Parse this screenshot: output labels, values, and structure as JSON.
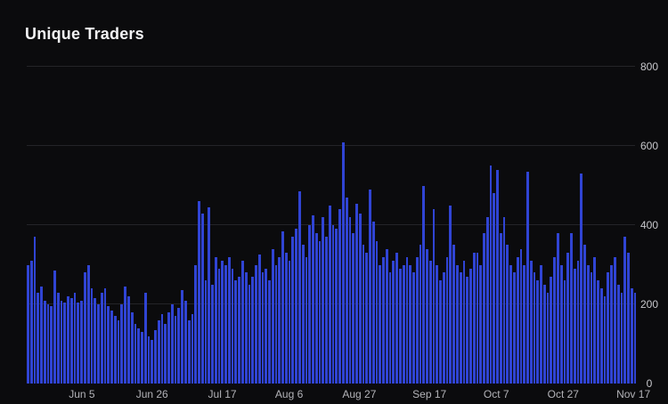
{
  "chart_data": {
    "type": "bar",
    "title": "Unique Traders",
    "xlabel": "",
    "ylabel": "",
    "ylim": [
      0,
      800
    ],
    "y_ticks": [
      0,
      200,
      400,
      600,
      800
    ],
    "y_axis_side": "right",
    "grid": "horizontal",
    "legend": "none",
    "x_tick_labels": [
      "Jun 5",
      "Jun 26",
      "Jul 17",
      "Aug 6",
      "Aug 27",
      "Sep 17",
      "Oct 7",
      "Oct 27",
      "Nov 17"
    ],
    "x_tick_indices": [
      16,
      37,
      58,
      78,
      99,
      120,
      140,
      160,
      181
    ],
    "values": [
      300,
      310,
      370,
      230,
      245,
      210,
      200,
      195,
      285,
      230,
      210,
      205,
      220,
      215,
      230,
      205,
      210,
      280,
      300,
      240,
      215,
      200,
      230,
      240,
      195,
      185,
      170,
      160,
      200,
      245,
      220,
      180,
      150,
      140,
      130,
      230,
      120,
      110,
      135,
      160,
      175,
      150,
      180,
      200,
      170,
      190,
      235,
      210,
      160,
      175,
      300,
      460,
      430,
      260,
      445,
      250,
      320,
      290,
      310,
      300,
      320,
      290,
      260,
      270,
      310,
      280,
      250,
      270,
      300,
      325,
      280,
      290,
      260,
      340,
      300,
      320,
      385,
      330,
      310,
      370,
      390,
      485,
      350,
      320,
      400,
      425,
      380,
      360,
      420,
      370,
      450,
      400,
      390,
      440,
      610,
      470,
      420,
      380,
      455,
      430,
      350,
      330,
      490,
      410,
      360,
      300,
      320,
      340,
      280,
      310,
      330,
      290,
      300,
      320,
      300,
      280,
      320,
      350,
      500,
      340,
      310,
      440,
      300,
      260,
      280,
      320,
      450,
      350,
      300,
      280,
      310,
      270,
      290,
      330,
      330,
      300,
      380,
      420,
      550,
      480,
      540,
      380,
      420,
      350,
      300,
      280,
      320,
      340,
      300,
      535,
      310,
      280,
      260,
      300,
      250,
      230,
      270,
      320,
      380,
      300,
      260,
      330,
      380,
      290,
      310,
      530,
      350,
      300,
      280,
      320,
      260,
      240,
      220,
      280,
      300,
      320,
      250,
      230,
      370,
      330,
      240,
      230
    ],
    "colors": {
      "background": "#0b0b0d",
      "bar": "#3044d4",
      "gridline": "#242428",
      "title_text": "#f2f2f4",
      "axis_text": "#b3b3b8"
    }
  }
}
